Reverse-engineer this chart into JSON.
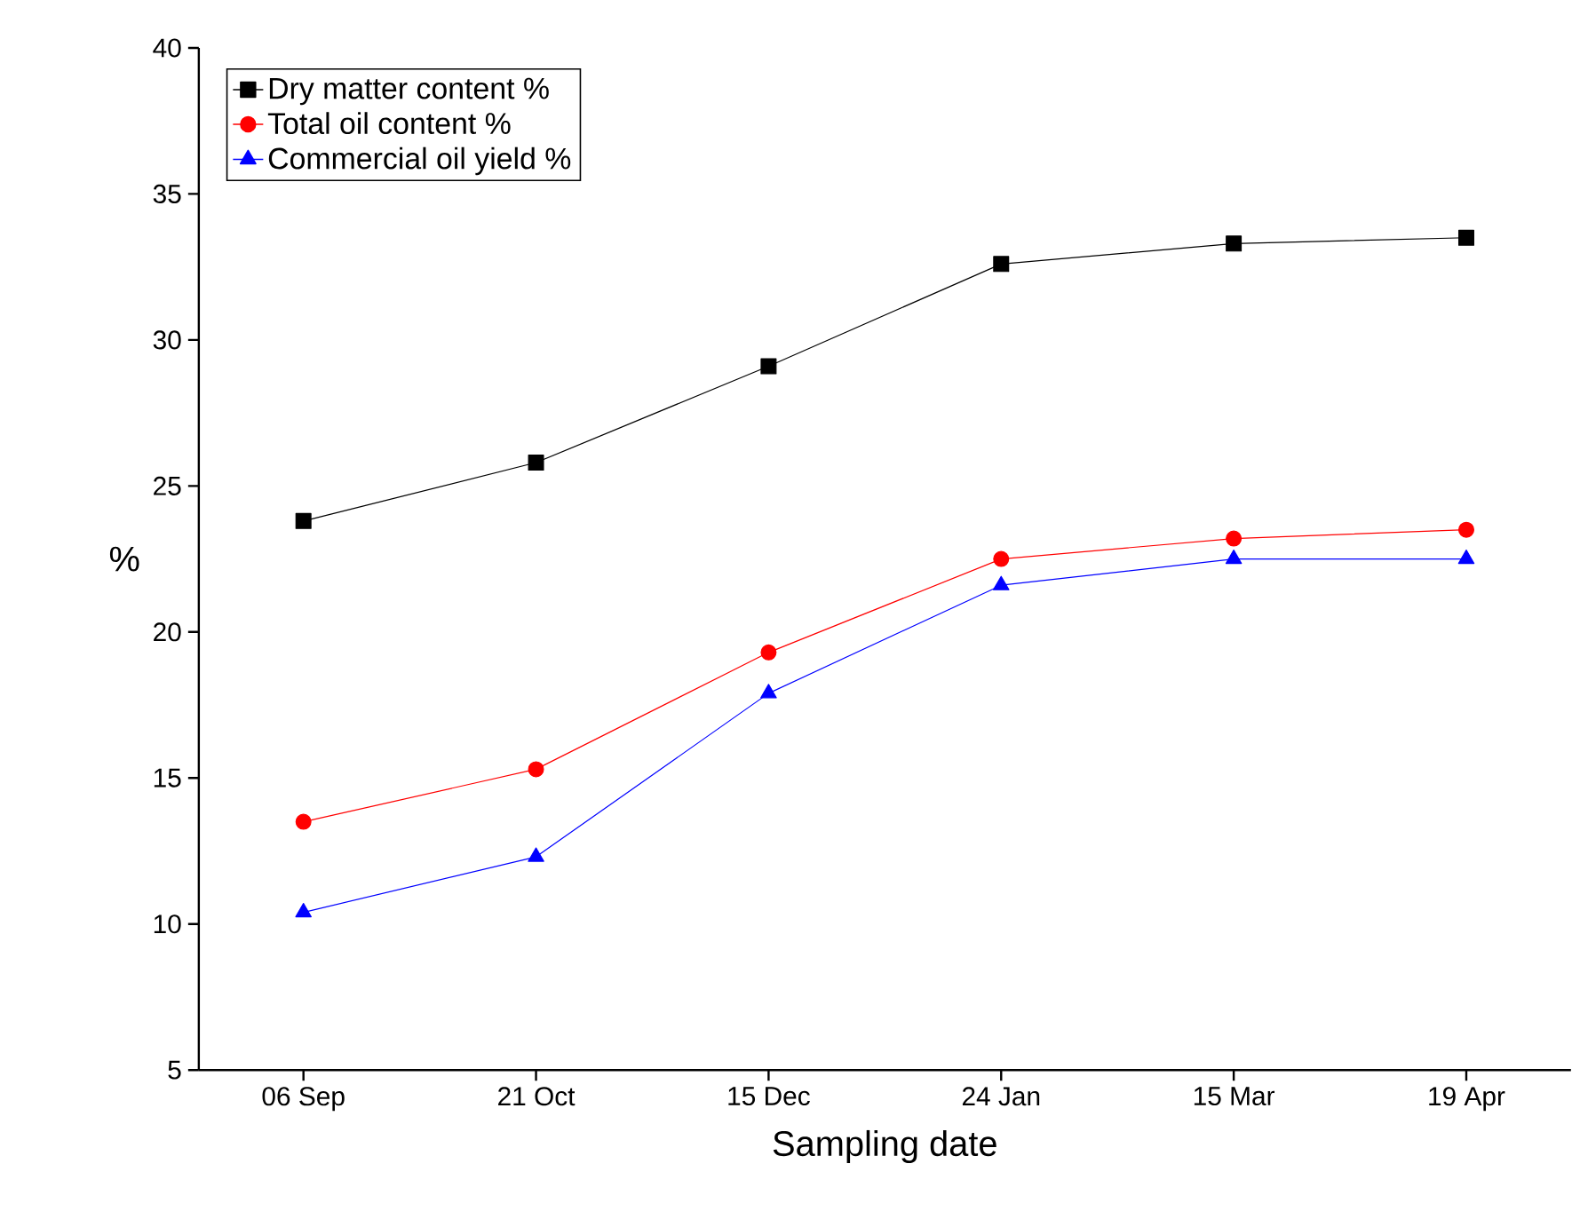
{
  "chart_data": {
    "type": "line",
    "xlabel": "Sampling date",
    "ylabel": "%",
    "categories": [
      "06 Sep",
      "21 Oct",
      "15 Dec",
      "24 Jan",
      "15 Mar",
      "19 Apr"
    ],
    "series": [
      {
        "name": "Dry matter content %",
        "color": "#000000",
        "marker": "square",
        "values": [
          23.8,
          25.8,
          29.1,
          32.6,
          33.3,
          33.5
        ]
      },
      {
        "name": "Total oil content %",
        "color": "#ff0000",
        "marker": "circle",
        "values": [
          13.5,
          15.3,
          19.3,
          22.5,
          23.2,
          23.5
        ]
      },
      {
        "name": "Commercial oil yield %",
        "color": "#0000ff",
        "marker": "triangle",
        "values": [
          10.4,
          12.3,
          17.9,
          21.6,
          22.5,
          22.5
        ]
      }
    ],
    "ylim": [
      5,
      40
    ],
    "yticks": [
      5,
      10,
      15,
      20,
      25,
      30,
      35,
      40
    ],
    "legend": "top left",
    "grid": false
  }
}
